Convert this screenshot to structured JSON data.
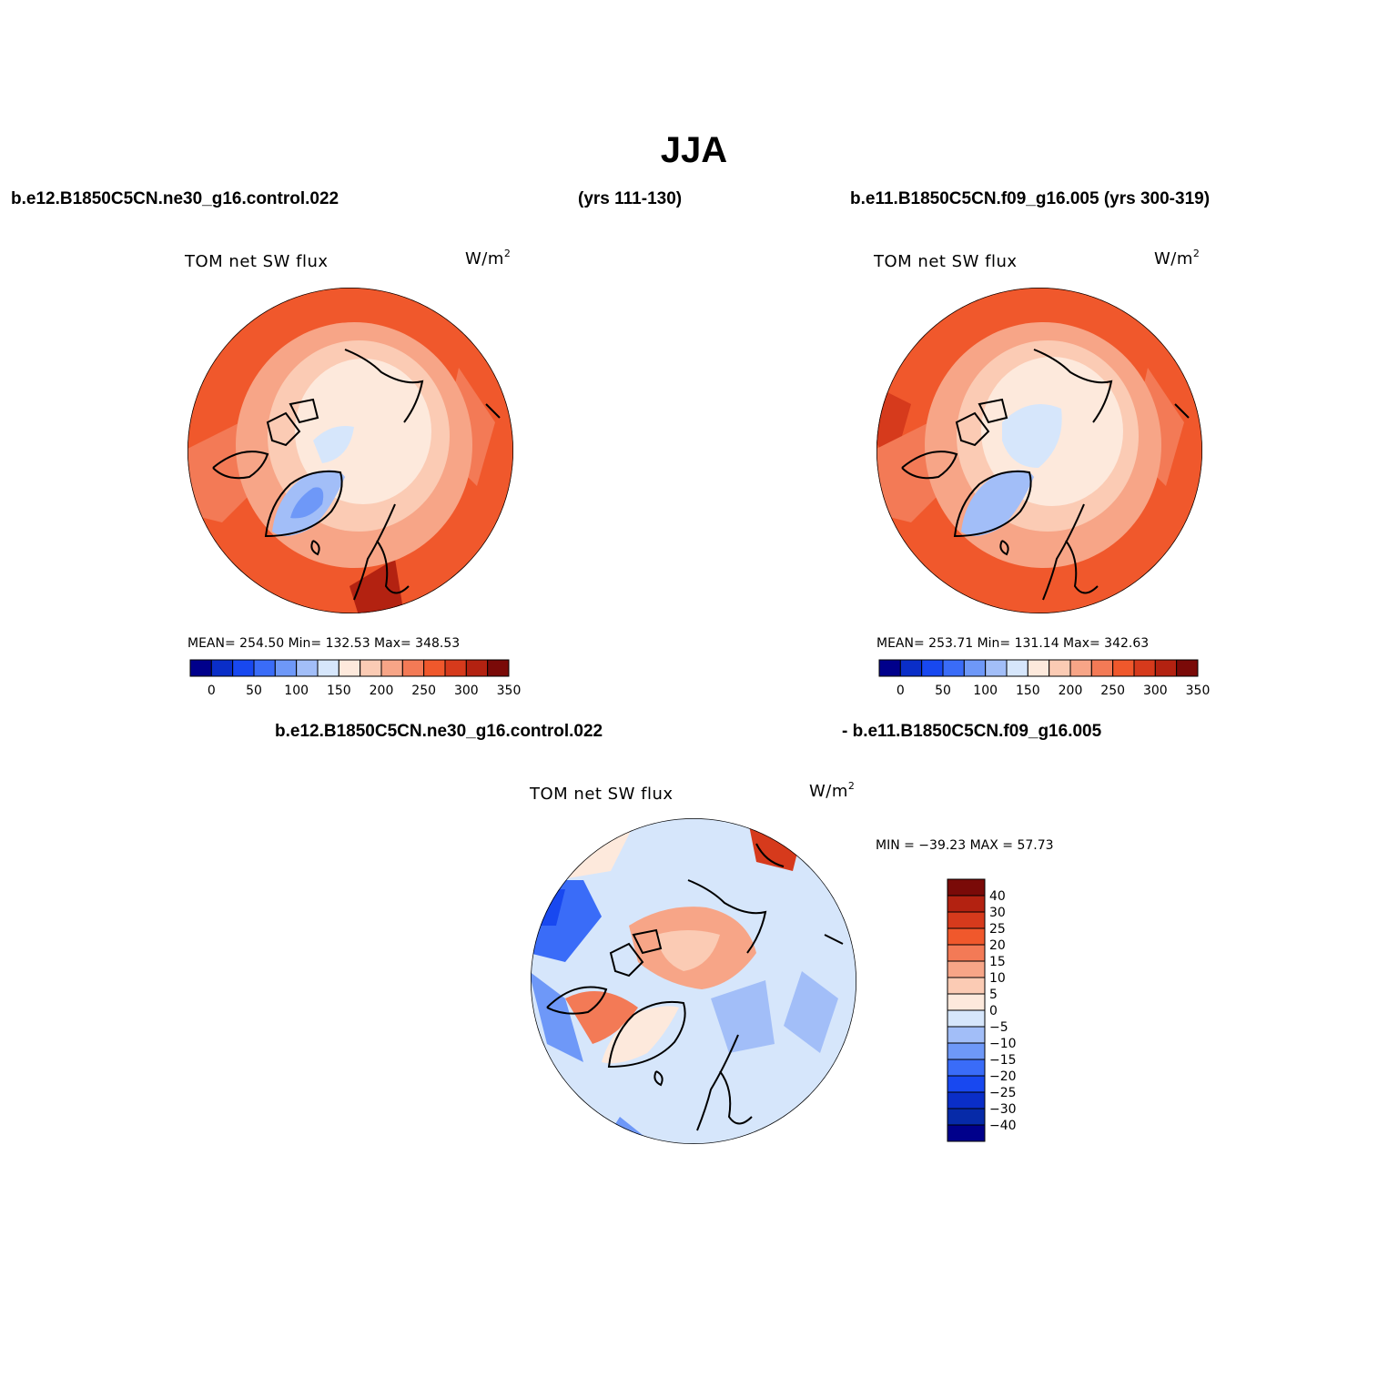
{
  "main_title": "JJA",
  "top_left_case": "b.e12.B1850C5CN.ne30_g16.control.022",
  "top_left_years": "(yrs 111-130)",
  "top_right_case": "b.e11.B1850C5CN.f09_g16.005 (yrs 300-319)",
  "diff_case_a": "b.e12.B1850C5CN.ne30_g16.control.022",
  "diff_case_b": "- b.e11.B1850C5CN.f09_g16.005",
  "panels": [
    {
      "title": "TOM net SW flux",
      "units": "W/m",
      "units_sup": "2",
      "stats": "MEAN= 254.50   Min= 132.53   Max= 348.53",
      "colorbar_colors": [
        "#00008b",
        "#0a2ec8",
        "#1848f0",
        "#3a6cf8",
        "#6e98f8",
        "#a2bef8",
        "#d6e6fb",
        "#fde9dc",
        "#fbcbb4",
        "#f7a587",
        "#f37a56",
        "#f0582c",
        "#d63a1c",
        "#b32211",
        "#7a0a08"
      ],
      "colorbar_labels": [
        "0",
        "50",
        "100",
        "150",
        "200",
        "250",
        "300",
        "350"
      ]
    },
    {
      "title": "TOM net SW flux",
      "units": "W/m",
      "units_sup": "2",
      "stats": "MEAN= 253.71   Min= 131.14   Max= 342.63",
      "colorbar_colors": [
        "#00008b",
        "#0a2ec8",
        "#1848f0",
        "#3a6cf8",
        "#6e98f8",
        "#a2bef8",
        "#d6e6fb",
        "#fde9dc",
        "#fbcbb4",
        "#f7a587",
        "#f37a56",
        "#f0582c",
        "#d63a1c",
        "#b32211",
        "#7a0a08"
      ],
      "colorbar_labels": [
        "0",
        "50",
        "100",
        "150",
        "200",
        "250",
        "300",
        "350"
      ]
    }
  ],
  "diff_panel": {
    "title": "TOM net SW flux",
    "units": "W/m",
    "units_sup": "2",
    "stats": "MIN = −39.23 MAX =  57.73",
    "colorbar_colors": [
      "#7a0a08",
      "#b32211",
      "#d63a1c",
      "#f0582c",
      "#f37a56",
      "#f7a587",
      "#fbcbb4",
      "#fde9dc",
      "#d6e6fb",
      "#a2bef8",
      "#6e98f8",
      "#3a6cf8",
      "#1848f0",
      "#0a2ec8",
      "#062aa8",
      "#00008b"
    ],
    "colorbar_labels": [
      "40",
      "30",
      "25",
      "20",
      "15",
      "10",
      "5",
      "0",
      "−5",
      "−10",
      "−15",
      "−20",
      "−25",
      "−30",
      "−40"
    ]
  }
}
